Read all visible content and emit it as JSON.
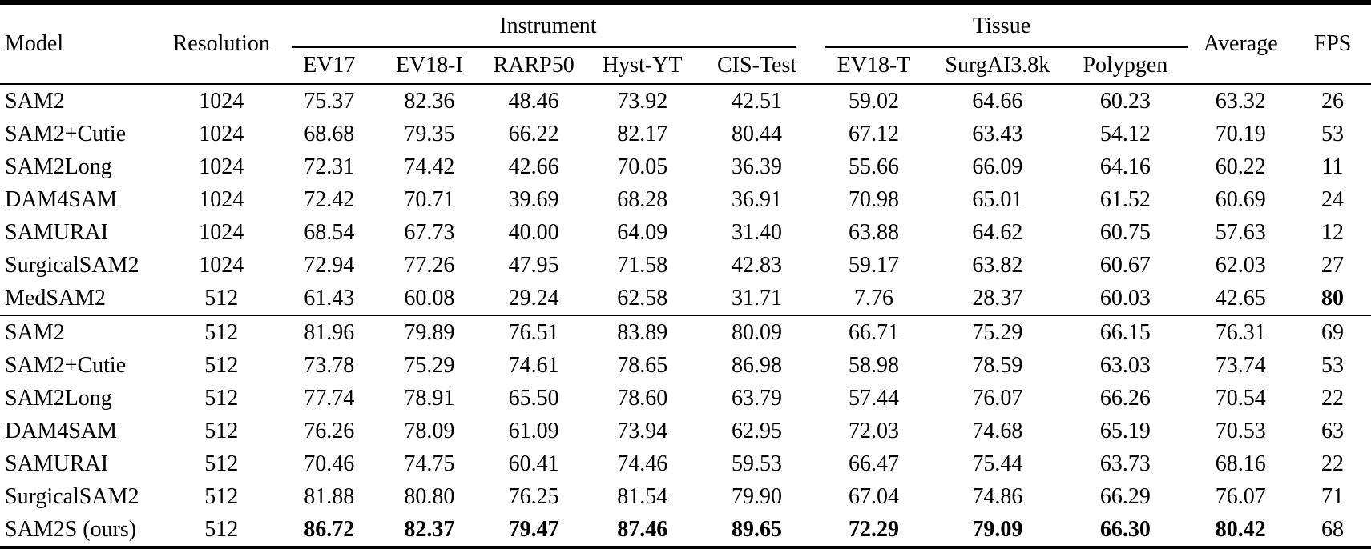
{
  "colors": {
    "background": "#ffffff",
    "text": "#000000",
    "rule": "#000000"
  },
  "table": {
    "headers": {
      "model": "Model",
      "resolution": "Resolution",
      "instrument_group": "Instrument",
      "tissue_group": "Tissue",
      "average": "Average",
      "fps": "FPS",
      "instrument_cols": [
        "EV17",
        "EV18-I",
        "RARP50",
        "Hyst-YT",
        "CIS-Test"
      ],
      "tissue_cols": [
        "EV18-T",
        "SurgAI3.8k",
        "Polypgen"
      ]
    },
    "groups": [
      {
        "name": "group-1024",
        "rows": [
          {
            "model": "SAM2",
            "resolution": "1024",
            "values": [
              "75.37",
              "82.36",
              "48.46",
              "73.92",
              "42.51",
              "59.02",
              "64.66",
              "60.23",
              "63.32"
            ],
            "fps": "26",
            "bold_values": false,
            "bold_fps": false
          },
          {
            "model": "SAM2+Cutie",
            "resolution": "1024",
            "values": [
              "68.68",
              "79.35",
              "66.22",
              "82.17",
              "80.44",
              "67.12",
              "63.43",
              "54.12",
              "70.19"
            ],
            "fps": "53",
            "bold_values": false,
            "bold_fps": false
          },
          {
            "model": "SAM2Long",
            "resolution": "1024",
            "values": [
              "72.31",
              "74.42",
              "42.66",
              "70.05",
              "36.39",
              "55.66",
              "66.09",
              "64.16",
              "60.22"
            ],
            "fps": "11",
            "bold_values": false,
            "bold_fps": false
          },
          {
            "model": "DAM4SAM",
            "resolution": "1024",
            "values": [
              "72.42",
              "70.71",
              "39.69",
              "68.28",
              "36.91",
              "70.98",
              "65.01",
              "61.52",
              "60.69"
            ],
            "fps": "24",
            "bold_values": false,
            "bold_fps": false
          },
          {
            "model": "SAMURAI",
            "resolution": "1024",
            "values": [
              "68.54",
              "67.73",
              "40.00",
              "64.09",
              "31.40",
              "63.88",
              "64.62",
              "60.75",
              "57.63"
            ],
            "fps": "12",
            "bold_values": false,
            "bold_fps": false
          },
          {
            "model": "SurgicalSAM2",
            "resolution": "1024",
            "values": [
              "72.94",
              "77.26",
              "47.95",
              "71.58",
              "42.83",
              "59.17",
              "63.82",
              "60.67",
              "62.03"
            ],
            "fps": "27",
            "bold_values": false,
            "bold_fps": false
          },
          {
            "model": "MedSAM2",
            "resolution": "512",
            "values": [
              "61.43",
              "60.08",
              "29.24",
              "62.58",
              "31.71",
              "7.76",
              "28.37",
              "60.03",
              "42.65"
            ],
            "fps": "80",
            "bold_values": false,
            "bold_fps": true
          }
        ]
      },
      {
        "name": "group-512",
        "rows": [
          {
            "model": "SAM2",
            "resolution": "512",
            "values": [
              "81.96",
              "79.89",
              "76.51",
              "83.89",
              "80.09",
              "66.71",
              "75.29",
              "66.15",
              "76.31"
            ],
            "fps": "69",
            "bold_values": false,
            "bold_fps": false
          },
          {
            "model": "SAM2+Cutie",
            "resolution": "512",
            "values": [
              "73.78",
              "75.29",
              "74.61",
              "78.65",
              "86.98",
              "58.98",
              "78.59",
              "63.03",
              "73.74"
            ],
            "fps": "53",
            "bold_values": false,
            "bold_fps": false
          },
          {
            "model": "SAM2Long",
            "resolution": "512",
            "values": [
              "77.74",
              "78.91",
              "65.50",
              "78.60",
              "63.79",
              "57.44",
              "76.07",
              "66.26",
              "70.54"
            ],
            "fps": "22",
            "bold_values": false,
            "bold_fps": false
          },
          {
            "model": "DAM4SAM",
            "resolution": "512",
            "values": [
              "76.26",
              "78.09",
              "61.09",
              "73.94",
              "62.95",
              "72.03",
              "74.68",
              "65.19",
              "70.53"
            ],
            "fps": "63",
            "bold_values": false,
            "bold_fps": false
          },
          {
            "model": "SAMURAI",
            "resolution": "512",
            "values": [
              "70.46",
              "74.75",
              "60.41",
              "74.46",
              "59.53",
              "66.47",
              "75.44",
              "63.73",
              "68.16"
            ],
            "fps": "22",
            "bold_values": false,
            "bold_fps": false
          },
          {
            "model": "SurgicalSAM2",
            "resolution": "512",
            "values": [
              "81.88",
              "80.80",
              "76.25",
              "81.54",
              "79.90",
              "67.04",
              "74.86",
              "66.29",
              "76.07"
            ],
            "fps": "71",
            "bold_values": false,
            "bold_fps": false
          },
          {
            "model": "SAM2S (ours)",
            "resolution": "512",
            "values": [
              "86.72",
              "82.37",
              "79.47",
              "87.46",
              "89.65",
              "72.29",
              "79.09",
              "66.30",
              "80.42"
            ],
            "fps": "68",
            "bold_values": true,
            "bold_fps": false
          }
        ]
      }
    ]
  }
}
